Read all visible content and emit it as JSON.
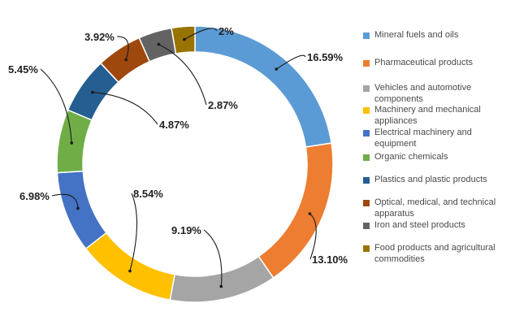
{
  "chart_data": {
    "type": "pie",
    "donut": true,
    "title": "",
    "legend_position": "right",
    "categories": [
      "Mineral fuels and oils",
      "Pharmaceutical products",
      "Vehicles and automotive components",
      "Machinery and mechanical appliances",
      "Electrical machinery and equipment",
      "Organic chemicals",
      "Plastics and plastic products",
      "Optical, medical, and technical apparatus",
      "Iron and steel products",
      "Food products and agricultural commodities"
    ],
    "legend_lines": [
      [
        "Mineral fuels and oils"
      ],
      [
        "Pharmaceutical products"
      ],
      [
        "Vehicles and automotive",
        "components"
      ],
      [
        "Machinery and mechanical",
        "appliances"
      ],
      [
        "Electrical machinery and",
        "equipment"
      ],
      [
        "Organic chemicals"
      ],
      [
        "Plastics and plastic products"
      ],
      [
        "Optical, medical, and technical",
        "apparatus"
      ],
      [
        "Iron and steel products"
      ],
      [
        "Food products and agricultural",
        "commodities"
      ]
    ],
    "values": [
      16.59,
      13.1,
      9.19,
      8.54,
      6.98,
      5.45,
      4.87,
      3.92,
      2.87,
      2.0
    ],
    "value_labels": [
      "16.59%",
      "13.10%",
      "9.19%",
      "8.54%",
      "6.98%",
      "5.45%",
      "4.87%",
      "3.92%",
      "2.87%",
      "2%"
    ],
    "colors": [
      "#5b9bd5",
      "#ed7d31",
      "#a5a5a5",
      "#ffc000",
      "#4472c4",
      "#70ad47",
      "#255e91",
      "#9e480e",
      "#636363",
      "#997300"
    ]
  }
}
